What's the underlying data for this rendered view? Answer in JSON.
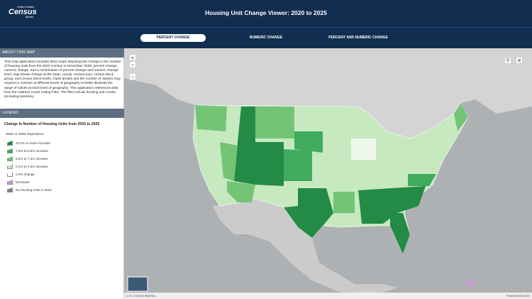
{
  "header": {
    "logo_line1": "United States",
    "logo_line2": "Census",
    "logo_line3": "Bureau",
    "title": "Housing Unit Change Viewer: 2020 to 2025"
  },
  "tabs": [
    "PERCENT CHANGE",
    "NUMERIC CHANGE",
    "PERCENT AND NUMERIC CHANGE"
  ],
  "about": {
    "title": "ABOUT THIS MAP",
    "text": "This map application includes three maps depicting the change in the number of housing units from the 2020 Census to November 2025: percent change, numeric change, and a combination of percent change and numeric change. Each map shows change at the state, county, census tract, census block group, and census block levels. Class breaks and the number of classes may expand or contract at different levels of geography to better illustrate the range of values at each level of geography. This application references data from the Address Count Listing Files. The files include housing unit counts (including transitory"
  },
  "legend": {
    "title": "LEGEND",
    "heading": "Change in Number of Housing Units from 2020 to 2025",
    "subheading": "State or State Equivalent",
    "items": [
      {
        "label": "10.0% or more increase",
        "color": "#238b45"
      },
      {
        "label": "7.5% to 9.9% increase",
        "color": "#41ab5d"
      },
      {
        "label": "5.0% to 7.4% increase",
        "color": "#74c476"
      },
      {
        "label": "0.1% to 4.9% increase",
        "color": "#c7e9c0"
      },
      {
        "label": "0.0% change",
        "color": "#ffffff"
      },
      {
        "label": "Decrease",
        "color": "#c39bd3"
      },
      {
        "label": "No housing units in 2020",
        "color": "#808080"
      }
    ]
  },
  "map": {
    "zoom_in": "+",
    "zoom_out": "−",
    "attribution": "U.S. Census Bureau",
    "powered": "Powered by Esri"
  }
}
